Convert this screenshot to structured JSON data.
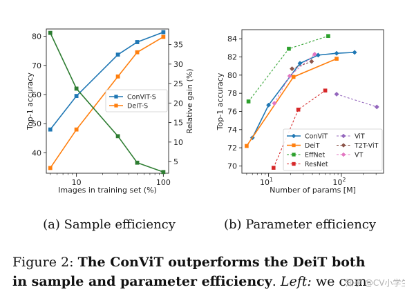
{
  "chart_data": [
    {
      "type": "line",
      "subtitle": "(a) Sample efficiency",
      "xlabel": "Images in training set (%)",
      "ylabel": "Top-1 accuracy",
      "y2label": "Relative gain (%)",
      "xscale": "log",
      "xlim": [
        4.5,
        115
      ],
      "ylim": [
        33,
        82.5
      ],
      "y2lim": [
        2,
        39
      ],
      "xticks": [
        {
          "v": 10,
          "t": "10"
        },
        {
          "v": 100,
          "t": "100"
        }
      ],
      "yticks": [
        40,
        50,
        60,
        70,
        80
      ],
      "y2ticks": [
        5,
        10,
        15,
        20,
        25,
        30,
        35
      ],
      "legend": "center-right",
      "series": [
        {
          "name": "ConViT-S",
          "color": "#1f77b4",
          "marker": "square",
          "axis": "left",
          "x": [
            5,
            10,
            30,
            50,
            100
          ],
          "y": [
            48.0,
            59.5,
            73.7,
            78.0,
            81.4
          ]
        },
        {
          "name": "DeiT-S",
          "color": "#ff7f0e",
          "marker": "square",
          "axis": "left",
          "x": [
            5,
            10,
            30,
            50,
            100
          ],
          "y": [
            34.8,
            48.0,
            66.2,
            74.5,
            79.8
          ]
        },
        {
          "name": "",
          "color": "#2e7d32",
          "marker": "square",
          "axis": "right",
          "x": [
            5,
            10,
            30,
            50,
            100
          ],
          "y": [
            38.0,
            23.7,
            11.5,
            4.7,
            2.3
          ]
        }
      ]
    },
    {
      "type": "line",
      "subtitle": "(b) Parameter efficiency",
      "xlabel": "Number of params [M]",
      "ylabel": "Top-1 accuracy",
      "xscale": "log",
      "xlim": [
        4.3,
        380
      ],
      "ylim": [
        69.2,
        85.0
      ],
      "xticks": [
        {
          "v": 10,
          "t": "10",
          "sup": "1"
        },
        {
          "v": 100,
          "t": "10",
          "sup": "2"
        }
      ],
      "yticks": [
        70,
        72,
        74,
        76,
        78,
        80,
        82,
        84
      ],
      "legend": "lower-right",
      "series": [
        {
          "name": "ConViT",
          "color": "#1f77b4",
          "marker": "diamond",
          "dash": "solid",
          "x": [
            6,
            10,
            27,
            48,
            86,
            152
          ],
          "y": [
            73.1,
            76.7,
            81.3,
            82.2,
            82.4,
            82.5
          ]
        },
        {
          "name": "DeiT",
          "color": "#ff7f0e",
          "marker": "square",
          "dash": "solid",
          "x": [
            5,
            22,
            86
          ],
          "y": [
            72.2,
            79.8,
            81.8
          ]
        },
        {
          "name": "EffNet",
          "color": "#2ca02c",
          "marker": "square",
          "dash": "dashed",
          "x": [
            5.3,
            19,
            66
          ],
          "y": [
            77.1,
            82.9,
            84.3
          ]
        },
        {
          "name": "ResNet",
          "color": "#d62728",
          "marker": "square",
          "dash": "dashed",
          "x": [
            11.7,
            25.6,
            60
          ],
          "y": [
            69.8,
            76.2,
            78.3
          ]
        },
        {
          "name": "ViT",
          "color": "#9467bd",
          "marker": "diamond",
          "dash": "dashed",
          "x": [
            86,
            307
          ],
          "y": [
            77.9,
            76.5
          ]
        },
        {
          "name": "T2T-ViT",
          "color": "#8c564b",
          "marker": "diamond",
          "dash": "dashed",
          "x": [
            21,
            39
          ],
          "y": [
            80.7,
            81.5
          ]
        },
        {
          "name": "VT",
          "color": "#e377c2",
          "marker": "diamond",
          "dash": "dashed",
          "x": [
            12,
            19.5,
            43
          ],
          "y": [
            76.9,
            79.9,
            82.3
          ]
        }
      ]
    }
  ],
  "caption": {
    "line1_prefix": "Figure 2: ",
    "line1_bold": "The ConViT outperforms the DeiT both",
    "line2_bold": "in sample and parameter efficiency",
    "line2_dot": ".  ",
    "line2_italic": "Left:",
    "line2_rest": " we com-"
  },
  "watermark": "知乎 @CV小学生"
}
